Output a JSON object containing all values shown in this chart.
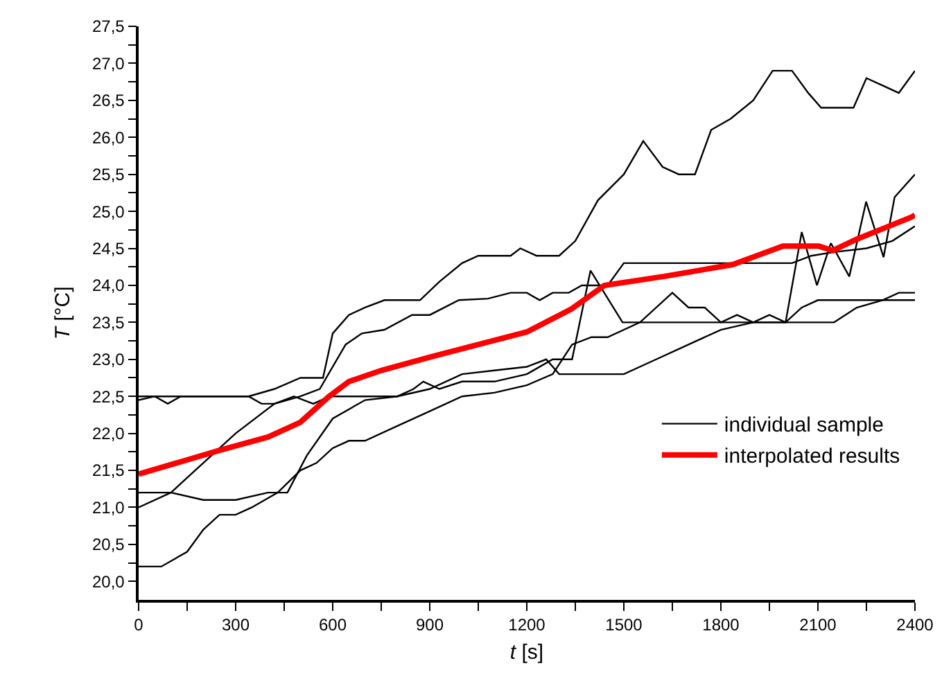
{
  "chart_data": {
    "type": "line",
    "xlabel": "t [s]",
    "ylabel": "T [°C]",
    "xlim": [
      0,
      2400
    ],
    "ylim": [
      19.75,
      27.5
    ],
    "xticks": [
      0,
      {
        "value": 150,
        "label": null
      },
      300,
      {
        "value": 450,
        "label": null
      },
      600,
      {
        "value": 750,
        "label": null
      },
      900,
      {
        "value": 1050,
        "label": null
      },
      1200,
      {
        "value": 1350,
        "label": null
      },
      1500,
      {
        "value": 1650,
        "label": null
      },
      1800,
      {
        "value": 1950,
        "label": null
      },
      2100,
      {
        "value": 2250,
        "label": null
      },
      2400
    ],
    "yticks": [
      {
        "value": 20.0,
        "label": "20,0"
      },
      {
        "value": 20.25,
        "label": null
      },
      {
        "value": 20.5,
        "label": "20,5"
      },
      {
        "value": 20.75,
        "label": null
      },
      {
        "value": 21.0,
        "label": "21,0"
      },
      {
        "value": 21.25,
        "label": null
      },
      {
        "value": 21.5,
        "label": "21,5"
      },
      {
        "value": 21.75,
        "label": null
      },
      {
        "value": 22.0,
        "label": "22,0"
      },
      {
        "value": 22.25,
        "label": null
      },
      {
        "value": 22.5,
        "label": "22,5"
      },
      {
        "value": 22.75,
        "label": null
      },
      {
        "value": 23.0,
        "label": "23,0"
      },
      {
        "value": 23.25,
        "label": null
      },
      {
        "value": 23.5,
        "label": "23,5"
      },
      {
        "value": 23.75,
        "label": null
      },
      {
        "value": 24.0,
        "label": "24,0"
      },
      {
        "value": 24.25,
        "label": null
      },
      {
        "value": 24.5,
        "label": "24,5"
      },
      {
        "value": 24.75,
        "label": null
      },
      {
        "value": 25.0,
        "label": "25,0"
      },
      {
        "value": 25.25,
        "label": null
      },
      {
        "value": 25.5,
        "label": "25,5"
      },
      {
        "value": 25.75,
        "label": null
      },
      {
        "value": 26.0,
        "label": "26,0"
      },
      {
        "value": 26.25,
        "label": null
      },
      {
        "value": 26.5,
        "label": "26,5"
      },
      {
        "value": 26.75,
        "label": null
      },
      {
        "value": 27.0,
        "label": "27,0"
      },
      {
        "value": 27.25,
        "label": null
      },
      {
        "value": 27.5,
        "label": "27,5"
      }
    ],
    "grid": false,
    "legend": "right",
    "marker": "none",
    "line_style": "solid",
    "series": [
      {
        "name": "individual sample",
        "color": "#000000",
        "x": [
          0,
          340,
          420,
          500,
          570,
          600,
          650,
          700,
          760,
          870,
          930,
          1000,
          1050,
          1150,
          1180,
          1230,
          1300,
          1350,
          1420,
          1500,
          1560,
          1620,
          1670,
          1720,
          1770,
          1830,
          1900,
          1960,
          2020,
          2070,
          2110,
          2210,
          2250,
          2350,
          2400
        ],
        "values": [
          22.5,
          22.5,
          22.6,
          22.75,
          22.75,
          23.35,
          23.6,
          23.7,
          23.8,
          23.8,
          24.05,
          24.3,
          24.4,
          24.4,
          24.5,
          24.4,
          24.4,
          24.6,
          25.15,
          25.5,
          25.95,
          25.6,
          25.5,
          25.5,
          26.1,
          26.25,
          26.5,
          26.9,
          26.9,
          26.6,
          26.4,
          26.4,
          26.8,
          26.6,
          26.9
        ]
      },
      {
        "color": "#000000",
        "x": [
          0,
          100,
          150,
          300,
          420,
          500,
          560,
          600,
          640,
          690,
          760,
          845,
          900,
          990,
          1080,
          1150,
          1200,
          1240,
          1280,
          1330,
          1370,
          1450,
          1500,
          2020,
          2080,
          2150,
          2250,
          2330,
          2400
        ],
        "values": [
          21.2,
          21.2,
          21.4,
          22.0,
          22.4,
          22.5,
          22.6,
          22.9,
          23.2,
          23.35,
          23.4,
          23.6,
          23.6,
          23.8,
          23.82,
          23.9,
          23.9,
          23.8,
          23.9,
          23.9,
          24.0,
          24.0,
          24.3,
          24.3,
          24.4,
          24.45,
          24.5,
          24.6,
          24.8
        ]
      },
      {
        "color": "#000000",
        "x": [
          0,
          50,
          90,
          130,
          340,
          380,
          420,
          480,
          540,
          590,
          800,
          850,
          880,
          930,
          1000,
          1100,
          1200,
          1280,
          1340,
          1397,
          1496,
          2000,
          2050,
          2097,
          2140,
          2197,
          2249,
          2303,
          2337,
          2400
        ],
        "values": [
          22.45,
          22.5,
          22.4,
          22.5,
          22.5,
          22.4,
          22.4,
          22.5,
          22.4,
          22.5,
          22.5,
          22.6,
          22.7,
          22.6,
          22.7,
          22.7,
          22.8,
          23.0,
          23.0,
          24.2,
          23.5,
          23.5,
          24.72,
          24.0,
          24.57,
          24.12,
          25.13,
          24.38,
          25.19,
          25.5
        ]
      },
      {
        "color": "#000000",
        "x": [
          0,
          100,
          200,
          300,
          400,
          460,
          520,
          600,
          700,
          800,
          900,
          1000,
          1100,
          1200,
          1260,
          1300,
          1400,
          1500,
          1600,
          1700,
          1800,
          1900,
          2150,
          2220,
          2300,
          2400
        ],
        "values": [
          21.0,
          21.2,
          21.1,
          21.1,
          21.2,
          21.2,
          21.7,
          22.2,
          22.45,
          22.5,
          22.6,
          22.8,
          22.85,
          22.9,
          23.0,
          22.8,
          22.8,
          22.8,
          23.0,
          23.2,
          23.4,
          23.5,
          23.5,
          23.7,
          23.8,
          23.8
        ]
      },
      {
        "color": "#000000",
        "x": [
          0,
          70,
          150,
          200,
          250,
          300,
          350,
          430,
          500,
          550,
          600,
          650,
          700,
          800,
          900,
          1000,
          1100,
          1200,
          1280,
          1340,
          1400,
          1450,
          1550,
          1650,
          1700,
          1750,
          1800,
          1850,
          1900,
          1950,
          2000,
          2050,
          2100,
          2300,
          2350,
          2400
        ],
        "values": [
          20.2,
          20.2,
          20.4,
          20.7,
          20.9,
          20.9,
          21.0,
          21.2,
          21.5,
          21.6,
          21.8,
          21.9,
          21.9,
          22.1,
          22.3,
          22.5,
          22.55,
          22.65,
          22.8,
          23.2,
          23.3,
          23.3,
          23.5,
          23.9,
          23.7,
          23.7,
          23.5,
          23.6,
          23.5,
          23.6,
          23.5,
          23.7,
          23.8,
          23.8,
          23.9,
          23.9
        ]
      },
      {
        "name": "interpolated results",
        "color": "#ff0000",
        "x": [
          0,
          250,
          400,
          500,
          589,
          650,
          750,
          900,
          1050,
          1200,
          1338,
          1440,
          1623,
          1836,
          1992,
          2103,
          2146,
          2218,
          2303,
          2388,
          2400
        ],
        "values": [
          21.45,
          21.77,
          21.95,
          22.15,
          22.5,
          22.7,
          22.85,
          23.03,
          23.2,
          23.37,
          23.68,
          24.0,
          24.12,
          24.28,
          24.53,
          24.53,
          24.47,
          24.62,
          24.77,
          24.92,
          24.95
        ]
      }
    ]
  }
}
